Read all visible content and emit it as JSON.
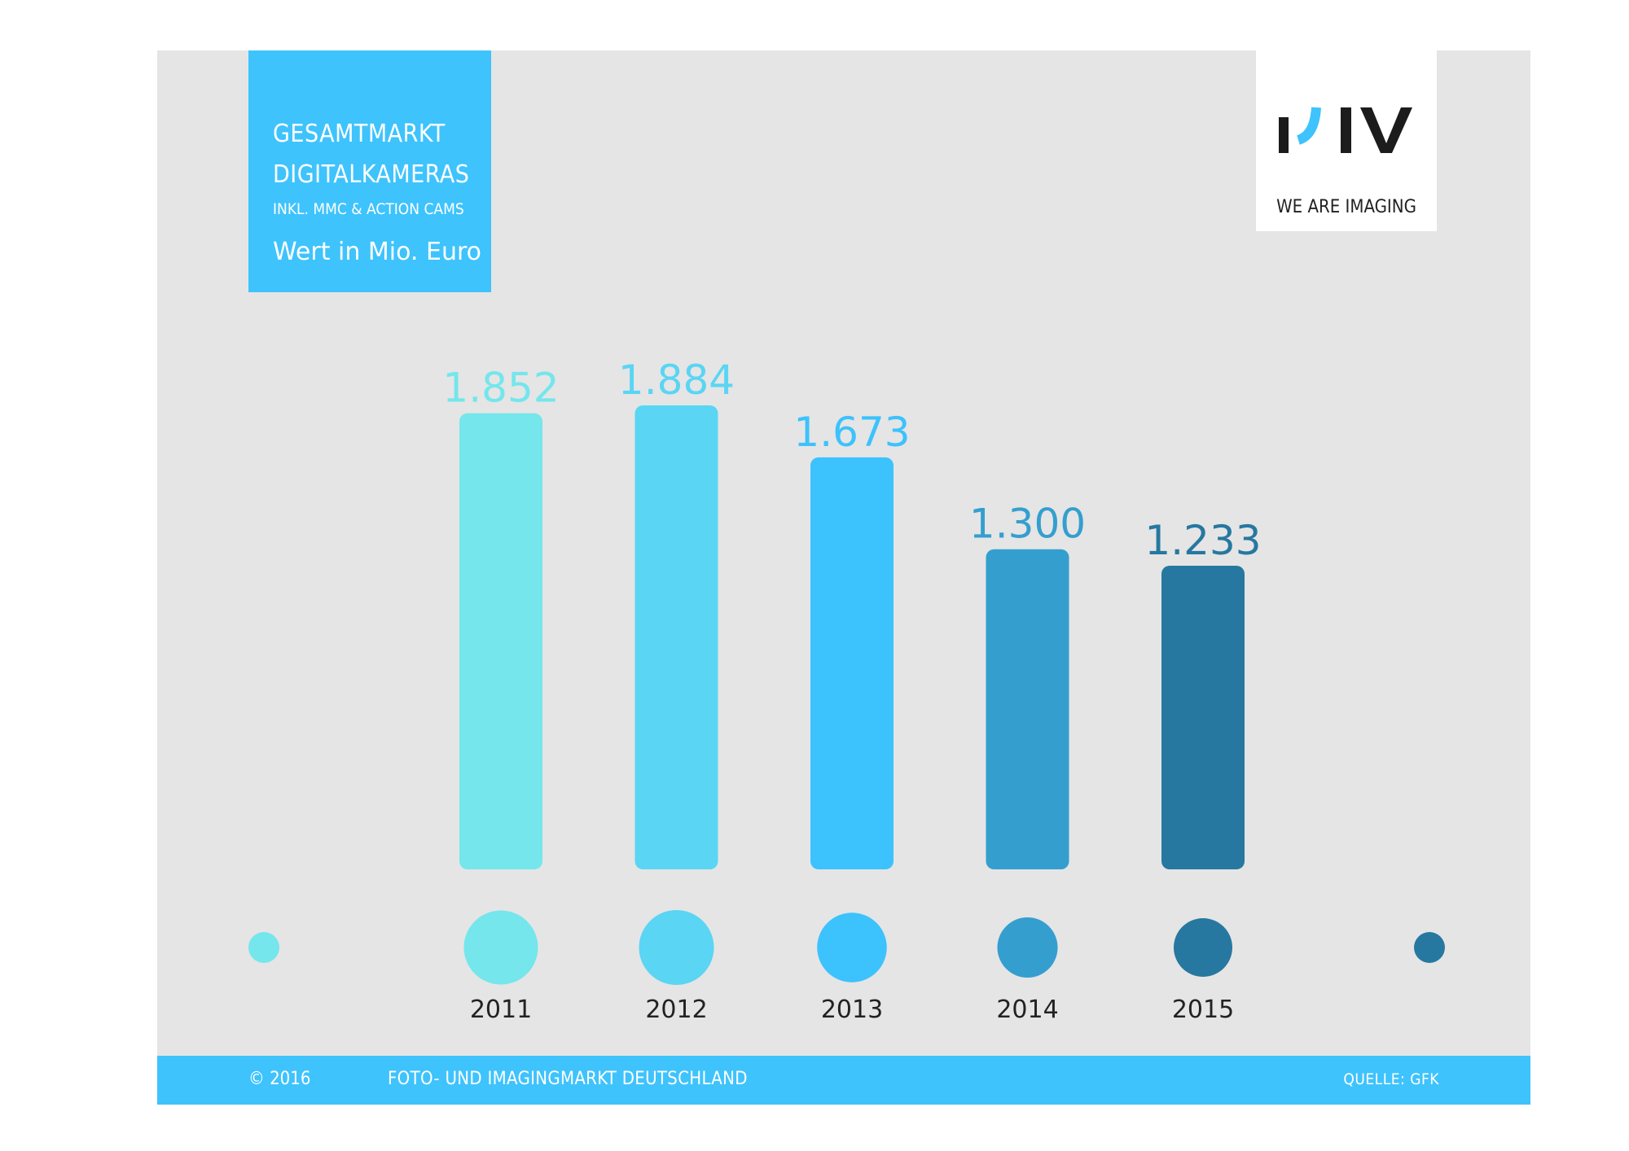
{
  "header": {
    "title_line1": "GESAMTMARKT",
    "title_line2": "DIGITALKAMERAS",
    "subtitle": "INKL. MMC & ACTION CAMS",
    "unit": "Wert in Mio. Euro"
  },
  "logo": {
    "mark": "PIV",
    "tagline": "WE ARE IMAGING"
  },
  "chart_data": {
    "type": "bar",
    "title": "GESAMTMARKT DIGITALKAMERAS",
    "subtitle": "INKL. MMC & ACTION CAMS",
    "ylabel": "Wert in Mio. Euro",
    "xlabel": "",
    "categories": [
      "2011",
      "2012",
      "2013",
      "2014",
      "2015"
    ],
    "values": [
      1852,
      1884,
      1673,
      1300,
      1233
    ],
    "value_labels": [
      "1.852",
      "1.884",
      "1.673",
      "1.300",
      "1.233"
    ],
    "ylim": [
      0,
      1884
    ],
    "grid": false,
    "legend": "none",
    "colors": [
      "#74e6ec",
      "#5ad5f4",
      "#3cc2fd",
      "#349fcf",
      "#2678a0"
    ]
  },
  "timeline": {
    "start_color": "#74e6ec",
    "end_color": "#2678a0"
  },
  "footer": {
    "copyright": "© 2016",
    "title": "FOTO- UND IMAGINGMARKT DEUTSCHLAND",
    "source": "QUELLE: GFK"
  },
  "theme": {
    "accent": "#3ec3fd",
    "card_bg": "#e5e5e5",
    "year_text": "#222222"
  }
}
